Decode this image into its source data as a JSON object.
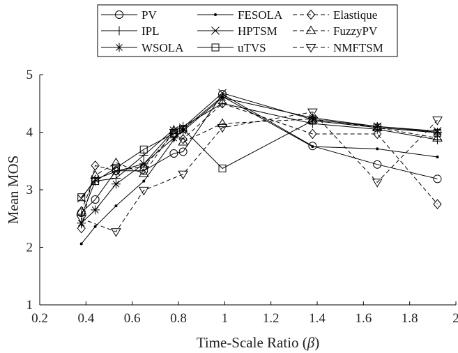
{
  "chart_data": {
    "type": "line",
    "xlabel": "Time-Scale Ratio (",
    "xlabel_symbol": "β",
    "xlabel_close": ")",
    "ylabel": "Mean MOS",
    "xlim": [
      0.2,
      2
    ],
    "ylim": [
      1,
      5
    ],
    "xticks": [
      0.2,
      0.4,
      0.6,
      0.8,
      1,
      1.2,
      1.4,
      1.6,
      1.8,
      2
    ],
    "xtick_labels": [
      "0.2",
      "0.4",
      "0.6",
      "0.8",
      "1",
      "1.2",
      "1.4",
      "1.6",
      "1.8",
      "2"
    ],
    "yticks": [
      1,
      2,
      3,
      4,
      5
    ],
    "ytick_labels": [
      "1",
      "2",
      "3",
      "4",
      "5"
    ],
    "legend_placement": "top-center",
    "series": [
      {
        "name": "PV",
        "marker": "circle",
        "dash": "solid",
        "x": [
          0.38,
          0.44,
          0.53,
          0.65,
          0.78,
          0.82,
          0.99,
          1.38,
          1.66,
          1.92
        ],
        "y": [
          2.6,
          2.83,
          3.33,
          3.33,
          3.63,
          3.66,
          4.66,
          3.76,
          3.44,
          3.19
        ]
      },
      {
        "name": "IPL",
        "marker": "plus",
        "dash": "solid",
        "x": [
          0.38,
          0.44,
          0.53,
          0.65,
          0.78,
          0.82,
          0.99,
          1.38,
          1.66,
          1.92
        ],
        "y": [
          2.55,
          3.15,
          3.2,
          3.6,
          4.05,
          4.1,
          4.5,
          4.15,
          4.05,
          3.87
        ]
      },
      {
        "name": "WSOLA",
        "marker": "asterisk",
        "dash": "solid",
        "x": [
          0.38,
          0.44,
          0.53,
          0.65,
          0.78,
          0.82,
          0.99,
          1.38,
          1.66,
          1.92
        ],
        "y": [
          2.42,
          2.65,
          3.1,
          3.45,
          3.9,
          4.02,
          4.6,
          4.25,
          4.1,
          4.0
        ]
      },
      {
        "name": "FESOLA",
        "marker": "dot",
        "dash": "solid",
        "x": [
          0.38,
          0.44,
          0.53,
          0.65,
          0.78,
          0.82,
          0.99,
          1.38,
          1.66,
          1.92
        ],
        "y": [
          2.06,
          2.36,
          2.72,
          3.15,
          3.87,
          4.05,
          4.62,
          3.75,
          3.71,
          3.57
        ]
      },
      {
        "name": "HPTSM",
        "marker": "cross",
        "dash": "solid",
        "x": [
          0.38,
          0.44,
          0.53,
          0.65,
          0.78,
          0.82,
          0.99,
          1.38,
          1.66,
          1.92
        ],
        "y": [
          2.85,
          3.18,
          3.32,
          3.45,
          4.03,
          4.08,
          4.68,
          4.22,
          4.1,
          4.02
        ]
      },
      {
        "name": "uTVS",
        "marker": "square",
        "dash": "solid",
        "x": [
          0.38,
          0.44,
          0.53,
          0.65,
          0.78,
          0.82,
          0.99,
          1.38,
          1.66,
          1.92
        ],
        "y": [
          2.87,
          3.15,
          3.38,
          3.7,
          3.98,
          4.06,
          3.37,
          4.2,
          4.08,
          3.99
        ]
      },
      {
        "name": "Elastique",
        "marker": "diamond",
        "dash": "dashed",
        "x": [
          0.38,
          0.44,
          0.53,
          0.65,
          0.78,
          0.82,
          0.99,
          1.38,
          1.66,
          1.92
        ],
        "y": [
          2.33,
          3.42,
          3.33,
          3.4,
          3.98,
          3.88,
          4.5,
          3.97,
          3.97,
          2.75
        ]
      },
      {
        "name": "FuzzyPV",
        "marker": "triangle-up",
        "dash": "dashed",
        "x": [
          0.38,
          0.44,
          0.53,
          0.65,
          0.78,
          0.82,
          0.99,
          1.38,
          1.66,
          1.92
        ],
        "y": [
          2.63,
          3.25,
          3.47,
          3.28,
          4.03,
          3.83,
          4.15,
          4.23,
          4.08,
          3.9
        ]
      },
      {
        "name": "NMFTSM",
        "marker": "triangle-down",
        "dash": "dashed",
        "x": [
          0.38,
          0.53,
          0.65,
          0.82,
          0.99,
          1.38,
          1.66,
          1.92
        ],
        "y": [
          2.5,
          2.27,
          2.99,
          3.27,
          4.08,
          4.35,
          3.13,
          4.21
        ]
      }
    ]
  }
}
